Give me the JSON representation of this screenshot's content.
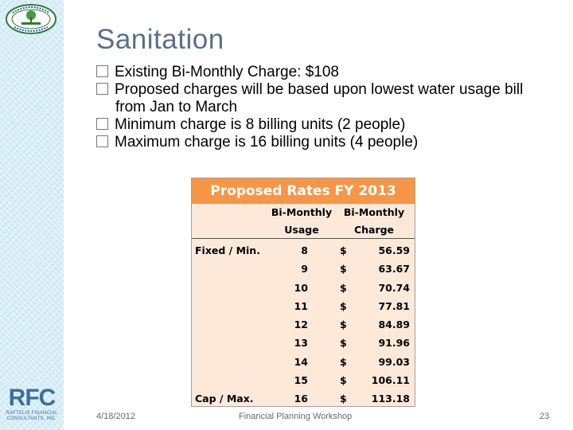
{
  "slide": {
    "title": "Sanitation",
    "bullets": [
      "Existing Bi-Monthly Charge: $108",
      "Proposed charges will be based upon lowest water usage bill from Jan to March",
      "Minimum charge is 8 billing units (2 people)",
      "Maximum charge is 16 billing units (4 people)"
    ]
  },
  "logos": {
    "bottom_main": "RFC",
    "bottom_sub": "RAFTELIS FINANCIAL CONSULTANTS, INC."
  },
  "table": {
    "title": "Proposed Rates FY 2013",
    "header_usage_line1": "Bi-Monthly",
    "header_usage_line2": "Usage",
    "header_charge_line1": "Bi-Monthly",
    "header_charge_line2": "Charge",
    "rows": [
      {
        "label": "Fixed / Min.",
        "usage": "8",
        "currency": "$",
        "charge": "56.59"
      },
      {
        "label": "",
        "usage": "9",
        "currency": "$",
        "charge": "63.67"
      },
      {
        "label": "",
        "usage": "10",
        "currency": "$",
        "charge": "70.74"
      },
      {
        "label": "",
        "usage": "11",
        "currency": "$",
        "charge": "77.81"
      },
      {
        "label": "",
        "usage": "12",
        "currency": "$",
        "charge": "84.89"
      },
      {
        "label": "",
        "usage": "13",
        "currency": "$",
        "charge": "91.96"
      },
      {
        "label": "",
        "usage": "14",
        "currency": "$",
        "charge": "99.03"
      },
      {
        "label": "",
        "usage": "15",
        "currency": "$",
        "charge": "106.11"
      },
      {
        "label": "Cap / Max.",
        "usage": "16",
        "currency": "$",
        "charge": "113.18"
      }
    ]
  },
  "footer": {
    "date": "4/18/2012",
    "center": "Financial Planning Workshop",
    "page": "23"
  },
  "colors": {
    "title": "#5c6f86",
    "table_header": "#f79646",
    "table_body": "#fde9d9",
    "sidebar": "#d9eef8"
  }
}
